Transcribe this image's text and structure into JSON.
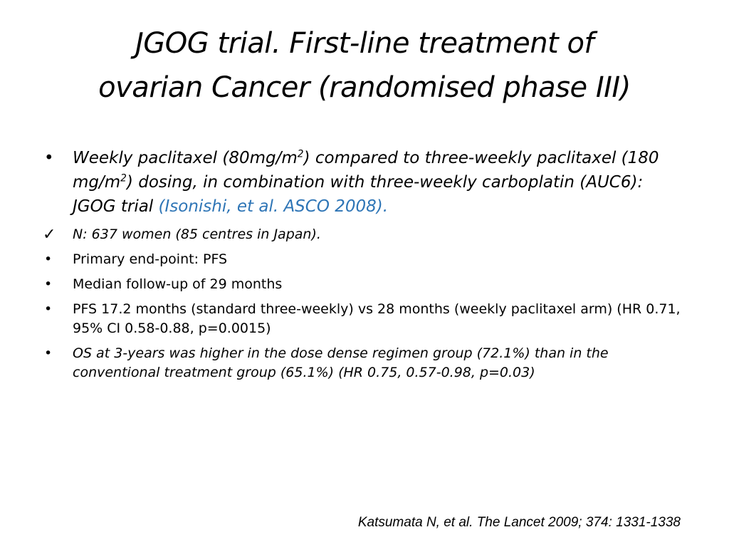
{
  "title": {
    "line1": "JGOG trial. First-line treatment of",
    "line2": "ovarian Cancer (randomised phase III)"
  },
  "bullets": [
    {
      "marker": "•",
      "text_parts": {
        "a": "Weekly paclitaxel (80mg/m",
        "a_sup": "2",
        "b": ") compared to three-weekly paclitaxel (180 mg/m",
        "b_sup": "2",
        "c": ") dosing, in combination with three-weekly carboplatin (AUC6): JGOG trial ",
        "ref": "(Isonishi, et al. ASCO 2008)."
      }
    },
    {
      "marker": "✓",
      "text": "N:  637 women (85 centres in Japan)."
    },
    {
      "marker": "•",
      "text": "Primary end-point: PFS"
    },
    {
      "marker": "•",
      "text": "Median follow-up of 29 months"
    },
    {
      "marker": "•",
      "text": "PFS 17.2 months (standard three-weekly) vs 28 months (weekly paclitaxel arm) (HR 0.71, 95% CI 0.58-0.88, p=0.0015)"
    },
    {
      "marker": "•",
      "text": "OS at 3-years was higher in the dose dense regimen group (72.1%) than in the conventional treatment group (65.1%) (HR 0.75, 0.57-0.98, p=0.03)"
    }
  ],
  "footer": "Katsumata N, et al. The Lancet 2009; 374: 1331-1338",
  "colors": {
    "background": "#ffffff",
    "text": "#000000",
    "reference_link": "#2e75b6"
  }
}
